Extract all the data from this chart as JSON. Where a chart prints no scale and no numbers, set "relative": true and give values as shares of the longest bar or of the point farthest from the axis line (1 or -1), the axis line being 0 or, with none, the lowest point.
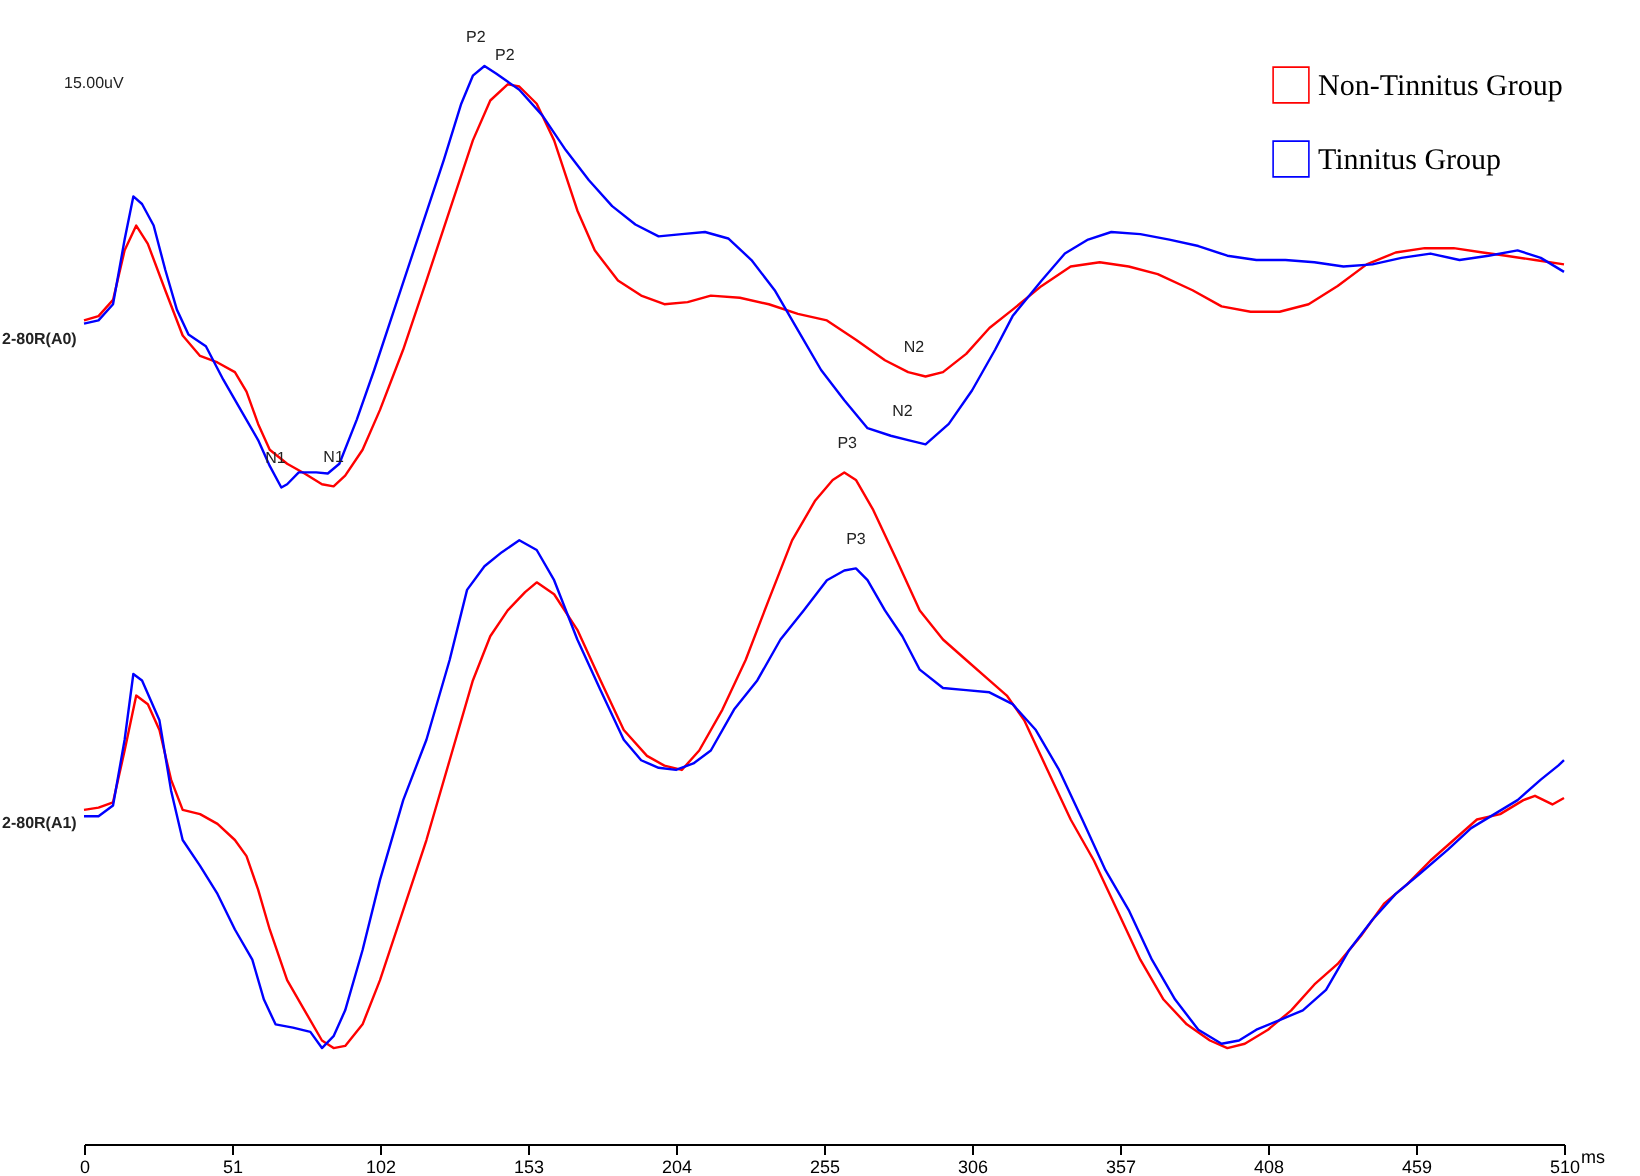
{
  "chart_data": {
    "type": "line",
    "relative": true,
    "xlabel": "ms",
    "xlim": [
      0,
      510
    ],
    "xticks": [
      0,
      51,
      102,
      153,
      204,
      255,
      306,
      357,
      408,
      459,
      510
    ],
    "legend": "top right",
    "annotations": [
      "15.00uV",
      "2-80R(A0)",
      "2-80R(A1)",
      {
        "text": "N1",
        "x": 66,
        "y": 0.609
      },
      {
        "text": "N1",
        "x": 86,
        "y": 0.61
      },
      {
        "text": "P2",
        "x": 135,
        "y": 1
      },
      {
        "text": "P2",
        "x": 145,
        "y": 0.983
      },
      {
        "text": "N2",
        "x": 286,
        "y": 0.712
      },
      {
        "text": "N2",
        "x": 282,
        "y": 0.653
      },
      {
        "text": "P3",
        "x": 263,
        "y": 0.623
      },
      {
        "text": "P3",
        "x": 266,
        "y": 0.534
      }
    ],
    "series": [
      {
        "name": "Non-Tinnitus Group",
        "color": "#ff0000",
        "x": [
          0,
          5,
          10,
          14,
          18,
          22,
          28,
          34,
          40,
          46,
          52,
          56,
          60,
          64,
          70,
          76,
          82,
          86,
          90,
          96,
          102,
          110,
          118,
          126,
          134,
          140,
          146,
          150,
          156,
          162,
          170,
          176,
          184,
          192,
          200,
          208,
          216,
          226,
          236,
          246,
          256,
          266,
          276,
          284,
          290,
          296,
          304,
          312,
          320,
          330,
          340,
          350,
          360,
          370,
          382,
          392,
          402,
          412,
          422,
          432,
          442,
          452,
          462,
          472,
          482,
          490,
          500,
          510
        ],
        "values": [
          0.764,
          0.768,
          0.783,
          0.829,
          0.852,
          0.835,
          0.792,
          0.75,
          0.731,
          0.725,
          0.716,
          0.698,
          0.668,
          0.644,
          0.631,
          0.622,
          0.612,
          0.61,
          0.62,
          0.644,
          0.681,
          0.737,
          0.801,
          0.866,
          0.931,
          0.968,
          0.983,
          0.981,
          0.965,
          0.931,
          0.866,
          0.829,
          0.801,
          0.787,
          0.779,
          0.781,
          0.787,
          0.785,
          0.779,
          0.77,
          0.764,
          0.746,
          0.727,
          0.716,
          0.712,
          0.716,
          0.733,
          0.757,
          0.774,
          0.796,
          0.814,
          0.818,
          0.814,
          0.807,
          0.792,
          0.777,
          0.772,
          0.772,
          0.779,
          0.796,
          0.816,
          0.827,
          0.831,
          0.831,
          0.827,
          0.824,
          0.82,
          0.816
        ]
      },
      {
        "name": "Tinnitus Group",
        "color": "#0000ff",
        "x": [
          0,
          5,
          10,
          14,
          17,
          20,
          24,
          28,
          32,
          36,
          42,
          48,
          54,
          60,
          64,
          68,
          70,
          74,
          80,
          84,
          88,
          94,
          100,
          108,
          116,
          124,
          130,
          134,
          138,
          142,
          150,
          158,
          166,
          174,
          182,
          190,
          198,
          206,
          214,
          222,
          230,
          238,
          246,
          254,
          262,
          270,
          278,
          284,
          290,
          298,
          306,
          314,
          320,
          330,
          338,
          346,
          354,
          364,
          374,
          384,
          394,
          404,
          414,
          424,
          434,
          444,
          454,
          464,
          474,
          484,
          494,
          502,
          510
        ],
        "values": [
          0.761,
          0.764,
          0.779,
          0.839,
          0.879,
          0.872,
          0.852,
          0.811,
          0.774,
          0.751,
          0.74,
          0.709,
          0.681,
          0.653,
          0.629,
          0.609,
          0.612,
          0.623,
          0.623,
          0.622,
          0.631,
          0.672,
          0.718,
          0.783,
          0.848,
          0.913,
          0.965,
          0.991,
          1,
          0.993,
          0.978,
          0.954,
          0.922,
          0.894,
          0.87,
          0.853,
          0.842,
          0.844,
          0.846,
          0.84,
          0.82,
          0.792,
          0.755,
          0.718,
          0.69,
          0.664,
          0.657,
          0.653,
          0.649,
          0.668,
          0.699,
          0.737,
          0.768,
          0.801,
          0.826,
          0.839,
          0.846,
          0.844,
          0.839,
          0.833,
          0.824,
          0.82,
          0.82,
          0.818,
          0.814,
          0.816,
          0.822,
          0.826,
          0.82,
          0.824,
          0.829,
          0.822,
          0.809
        ]
      },
      {
        "color": "#ff0000",
        "x": [
          0,
          5,
          10,
          14,
          18,
          22,
          26,
          30,
          34,
          40,
          46,
          52,
          56,
          60,
          64,
          70,
          76,
          82,
          86,
          90,
          96,
          102,
          110,
          118,
          126,
          134,
          140,
          146,
          152,
          156,
          162,
          170,
          178,
          186,
          194,
          200,
          206,
          212,
          220,
          228,
          236,
          244,
          252,
          258,
          262,
          266,
          272,
          280,
          288,
          296,
          304,
          312,
          318,
          324,
          332,
          340,
          348,
          356,
          364,
          372,
          380,
          388,
          394,
          400,
          408,
          416,
          424,
          432,
          440,
          448,
          456,
          464,
          472,
          480,
          488,
          496,
          500,
          506,
          510
        ],
        "values": [
          0.31,
          0.312,
          0.317,
          0.365,
          0.416,
          0.408,
          0.384,
          0.338,
          0.31,
          0.306,
          0.297,
          0.282,
          0.267,
          0.236,
          0.199,
          0.152,
          0.124,
          0.096,
          0.089,
          0.091,
          0.111,
          0.152,
          0.217,
          0.282,
          0.356,
          0.43,
          0.471,
          0.495,
          0.512,
          0.521,
          0.51,
          0.477,
          0.43,
          0.384,
          0.36,
          0.351,
          0.347,
          0.365,
          0.403,
          0.449,
          0.505,
          0.56,
          0.597,
          0.616,
          0.623,
          0.616,
          0.588,
          0.542,
          0.495,
          0.468,
          0.449,
          0.43,
          0.416,
          0.393,
          0.347,
          0.301,
          0.263,
          0.217,
          0.171,
          0.134,
          0.111,
          0.096,
          0.089,
          0.093,
          0.106,
          0.124,
          0.148,
          0.167,
          0.193,
          0.223,
          0.241,
          0.263,
          0.282,
          0.301,
          0.306,
          0.319,
          0.323,
          0.315,
          0.321
        ]
      },
      {
        "color": "#0000ff",
        "x": [
          0,
          5,
          10,
          14,
          17,
          20,
          26,
          30,
          34,
          40,
          46,
          52,
          58,
          62,
          66,
          72,
          78,
          82,
          86,
          90,
          96,
          102,
          110,
          118,
          126,
          132,
          138,
          144,
          150,
          156,
          162,
          170,
          178,
          186,
          192,
          198,
          204,
          210,
          216,
          224,
          232,
          240,
          248,
          256,
          262,
          266,
          270,
          276,
          282,
          288,
          296,
          304,
          312,
          320,
          328,
          336,
          344,
          352,
          360,
          368,
          376,
          384,
          392,
          398,
          404,
          412,
          420,
          428,
          436,
          444,
          452,
          460,
          470,
          478,
          486,
          494,
          502,
          508,
          510
        ],
        "values": [
          0.304,
          0.304,
          0.314,
          0.375,
          0.436,
          0.43,
          0.393,
          0.328,
          0.282,
          0.258,
          0.232,
          0.199,
          0.171,
          0.134,
          0.111,
          0.108,
          0.104,
          0.089,
          0.1,
          0.124,
          0.18,
          0.245,
          0.319,
          0.375,
          0.449,
          0.514,
          0.536,
          0.549,
          0.56,
          0.551,
          0.523,
          0.468,
          0.421,
          0.375,
          0.356,
          0.349,
          0.347,
          0.353,
          0.365,
          0.403,
          0.43,
          0.468,
          0.495,
          0.523,
          0.532,
          0.534,
          0.523,
          0.495,
          0.471,
          0.44,
          0.423,
          0.421,
          0.419,
          0.408,
          0.384,
          0.347,
          0.301,
          0.254,
          0.217,
          0.171,
          0.134,
          0.106,
          0.093,
          0.096,
          0.106,
          0.115,
          0.124,
          0.143,
          0.18,
          0.208,
          0.232,
          0.25,
          0.273,
          0.293,
          0.306,
          0.319,
          0.338,
          0.351,
          0.356
        ]
      }
    ]
  }
}
